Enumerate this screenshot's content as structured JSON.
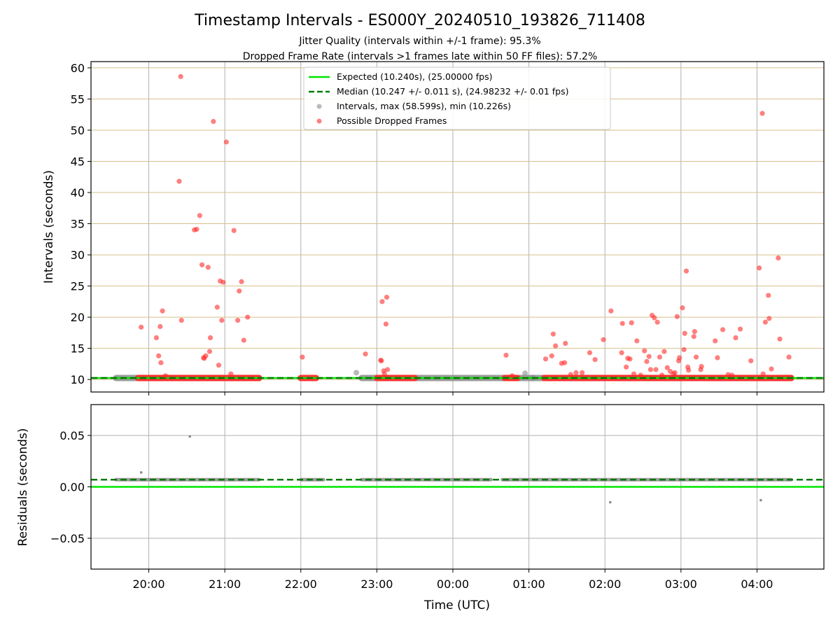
{
  "chart_data": [
    {
      "type": "scatter",
      "title": "Timestamp Intervals - ES000Y_20240510_193826_711408",
      "subtitle_lines": [
        "Jitter Quality (intervals within +/-1 frame): 95.3%",
        "Dropped Frame Rate (intervals >1 frames late within 50 FF files): 57.2%"
      ],
      "xlabel": "",
      "ylabel": "Intervals (seconds)",
      "x_unit": "hours after 00:00 UTC",
      "xlim": [
        -4.76,
        4.88
      ],
      "ylim": [
        8.0,
        61.0
      ],
      "yticks": [
        10,
        15,
        20,
        25,
        30,
        35,
        40,
        45,
        50,
        55,
        60
      ],
      "grid": "x gray, y tan",
      "legend": "top-center",
      "legend_entries": [
        {
          "label": "Expected (10.240s), (25.00000 fps)",
          "style": "solid-line",
          "color": "#00e600"
        },
        {
          "label": "Median (10.247 +/- 0.011 s), (24.98232 +/- 0.01 fps)",
          "style": "dashed-line",
          "color": "#007a00"
        },
        {
          "label": "Intervals, max (58.599s), min (10.226s)",
          "style": "marker",
          "color": "#8c8c8c"
        },
        {
          "label": "Possible Dropped Frames",
          "style": "marker",
          "color": "#ff2a2a"
        }
      ],
      "series": [
        {
          "name": "Expected",
          "kind": "hline",
          "y": 10.24
        },
        {
          "name": "Median",
          "kind": "hline",
          "y": 10.247
        },
        {
          "name": "Intervals",
          "kind": "band",
          "y": 10.24,
          "x_ranges": [
            [
              -4.43,
              -2.55
            ],
            [
              -1.2,
              1.05
            ],
            [
              1.05,
              4.45
            ]
          ],
          "extra_points": [
            [
              -1.27,
              11.1
            ],
            [
              0.95,
              11.0
            ],
            [
              -0.7,
              10.3
            ]
          ]
        },
        {
          "name": "Possible Dropped Frames",
          "kind": "band",
          "y": 10.24,
          "x_ranges": [
            [
              -4.14,
              -2.55
            ],
            [
              -2.0,
              -1.8
            ],
            [
              -1.0,
              -0.5
            ],
            [
              0.68,
              0.85
            ],
            [
              1.2,
              4.45
            ]
          ]
        },
        {
          "name": "Possible Dropped Frames",
          "kind": "points",
          "points": [
            [
              -4.1,
              18.4
            ],
            [
              -3.9,
              16.7
            ],
            [
              -3.87,
              13.8
            ],
            [
              -3.85,
              18.5
            ],
            [
              -3.84,
              12.7
            ],
            [
              -3.82,
              21.0
            ],
            [
              -3.78,
              10.6
            ],
            [
              -3.6,
              41.8
            ],
            [
              -3.58,
              58.6
            ],
            [
              -3.57,
              19.5
            ],
            [
              -3.4,
              34.0
            ],
            [
              -3.37,
              34.1
            ],
            [
              -3.33,
              36.3
            ],
            [
              -3.3,
              28.4
            ],
            [
              -3.28,
              13.5
            ],
            [
              -3.27,
              13.4
            ],
            [
              -3.25,
              13.8
            ],
            [
              -3.22,
              28.0
            ],
            [
              -3.2,
              14.5
            ],
            [
              -3.19,
              16.7
            ],
            [
              -3.15,
              51.4
            ],
            [
              -3.1,
              21.6
            ],
            [
              -3.08,
              12.3
            ],
            [
              -3.06,
              25.8
            ],
            [
              -3.04,
              19.5
            ],
            [
              -3.02,
              25.6
            ],
            [
              -2.98,
              48.1
            ],
            [
              -2.92,
              10.9
            ],
            [
              -2.88,
              33.9
            ],
            [
              -2.83,
              19.5
            ],
            [
              -2.81,
              24.2
            ],
            [
              -2.78,
              25.7
            ],
            [
              -2.75,
              16.3
            ],
            [
              -2.7,
              20.0
            ],
            [
              -1.98,
              13.6
            ],
            [
              -1.15,
              14.1
            ],
            [
              -0.95,
              13.1
            ],
            [
              -0.94,
              13.0
            ],
            [
              -0.93,
              22.5
            ],
            [
              -0.91,
              11.4
            ],
            [
              -0.9,
              10.9
            ],
            [
              -0.88,
              18.9
            ],
            [
              -0.87,
              23.2
            ],
            [
              -0.86,
              11.6
            ],
            [
              0.7,
              13.9
            ],
            [
              0.78,
              10.6
            ],
            [
              1.22,
              13.3
            ],
            [
              1.3,
              13.8
            ],
            [
              1.32,
              17.3
            ],
            [
              1.35,
              15.4
            ],
            [
              1.43,
              12.6
            ],
            [
              1.47,
              12.7
            ],
            [
              1.48,
              15.8
            ],
            [
              1.55,
              10.8
            ],
            [
              1.62,
              11.1
            ],
            [
              1.7,
              11.1
            ],
            [
              1.8,
              14.3
            ],
            [
              1.87,
              13.2
            ],
            [
              1.98,
              16.4
            ],
            [
              2.08,
              21.0
            ],
            [
              2.22,
              14.3
            ],
            [
              2.23,
              19.0
            ],
            [
              2.28,
              12.0
            ],
            [
              2.3,
              13.4
            ],
            [
              2.33,
              13.3
            ],
            [
              2.35,
              19.1
            ],
            [
              2.38,
              10.9
            ],
            [
              2.42,
              16.2
            ],
            [
              2.47,
              10.7
            ],
            [
              2.52,
              14.6
            ],
            [
              2.55,
              12.9
            ],
            [
              2.58,
              13.7
            ],
            [
              2.6,
              11.6
            ],
            [
              2.62,
              20.3
            ],
            [
              2.65,
              19.9
            ],
            [
              2.67,
              11.6
            ],
            [
              2.69,
              19.2
            ],
            [
              2.72,
              13.6
            ],
            [
              2.75,
              10.7
            ],
            [
              2.78,
              14.5
            ],
            [
              2.82,
              11.9
            ],
            [
              2.86,
              11.3
            ],
            [
              2.9,
              10.9
            ],
            [
              2.92,
              11.1
            ],
            [
              2.95,
              20.1
            ],
            [
              2.97,
              13.0
            ],
            [
              2.98,
              13.5
            ],
            [
              3.02,
              21.5
            ],
            [
              3.04,
              14.8
            ],
            [
              3.05,
              17.4
            ],
            [
              3.07,
              27.4
            ],
            [
              3.09,
              12.0
            ],
            [
              3.1,
              11.5
            ],
            [
              3.17,
              16.9
            ],
            [
              3.18,
              17.7
            ],
            [
              3.2,
              13.6
            ],
            [
              3.26,
              11.6
            ],
            [
              3.27,
              12.1
            ],
            [
              3.45,
              16.2
            ],
            [
              3.48,
              13.5
            ],
            [
              3.55,
              18.0
            ],
            [
              3.62,
              10.8
            ],
            [
              3.67,
              10.7
            ],
            [
              3.72,
              16.7
            ],
            [
              3.78,
              18.1
            ],
            [
              3.92,
              13.0
            ],
            [
              4.03,
              27.9
            ],
            [
              4.07,
              52.7
            ],
            [
              4.08,
              10.9
            ],
            [
              4.11,
              19.2
            ],
            [
              4.15,
              23.5
            ],
            [
              4.16,
              19.8
            ],
            [
              4.19,
              11.7
            ],
            [
              4.28,
              29.5
            ],
            [
              4.3,
              16.5
            ],
            [
              4.42,
              13.6
            ]
          ]
        }
      ]
    },
    {
      "type": "scatter",
      "title": "",
      "xlabel": "Time (UTC)",
      "ylabel": "Residuals (seconds)",
      "x_unit": "hours after 00:00 UTC",
      "xlim": [
        -4.76,
        4.88
      ],
      "ylim": [
        -0.08,
        0.08
      ],
      "yticks": [
        -0.05,
        0.0,
        0.05
      ],
      "ytick_labels": [
        "−0.05",
        "0.00",
        "0.05"
      ],
      "xticks": [
        -4,
        -3,
        -2,
        -1,
        0,
        1,
        2,
        3,
        4
      ],
      "xtick_labels": [
        "20:00",
        "21:00",
        "22:00",
        "23:00",
        "00:00",
        "01:00",
        "02:00",
        "03:00",
        "04:00"
      ],
      "grid": "both gray",
      "series": [
        {
          "name": "Expected",
          "kind": "hline",
          "y": 0.0
        },
        {
          "name": "Median",
          "kind": "hline",
          "y": 0.007
        },
        {
          "name": "Residuals",
          "kind": "band",
          "y": 0.007,
          "x_ranges": [
            [
              -4.43,
              -2.55
            ],
            [
              -2.0,
              -1.7
            ],
            [
              -1.2,
              0.5
            ],
            [
              0.65,
              4.45
            ]
          ]
        },
        {
          "name": "Residuals",
          "kind": "points",
          "points": [
            [
              -4.1,
              0.014
            ],
            [
              -3.46,
              0.049
            ],
            [
              2.07,
              -0.015
            ],
            [
              4.05,
              -0.013
            ]
          ]
        }
      ]
    }
  ],
  "colors": {
    "expected": "#00e600",
    "median": "#007a00",
    "intervals": "#8c8c8c",
    "dropped": "#ff2a2a",
    "grid_x": "#b0b0b0",
    "grid_y_top": "#d4c08a"
  }
}
